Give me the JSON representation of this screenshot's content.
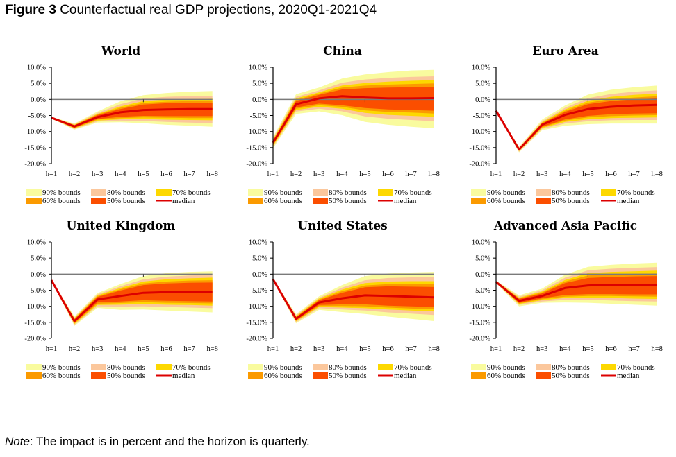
{
  "figure": {
    "label": "Figure 3",
    "title": "Counterfactual real GDP projections, 2020Q1-2021Q4",
    "note_label": "Note",
    "note_text": ": The impact is in percent and the horizon is quarterly."
  },
  "colors": {
    "b90": "#f9fb9e",
    "b80": "#fbc79c",
    "b70": "#fdd800",
    "b60": "#fb9a00",
    "b50": "#fb4e00",
    "median": "#dc0000",
    "zero_line": "#7a7a7a",
    "axis": "#000000"
  },
  "chart_data": [
    {
      "type": "area",
      "title": "World",
      "x": [
        "h=1",
        "h=2",
        "h=3",
        "h=4",
        "h=5",
        "h=6",
        "h=7",
        "h=8"
      ],
      "yticks": [
        "10.0%",
        "5.0%",
        "0.0%",
        "-5.0%",
        "-10.0%",
        "-15.0%",
        "-20.0%"
      ],
      "ylim": [
        -20,
        10
      ],
      "median": [
        -5.7,
        -8.4,
        -5.5,
        -4.0,
        -3.3,
        -3.1,
        -3.0,
        -3.0
      ],
      "bands": {
        "90": {
          "lo": [
            -6.0,
            -9.4,
            -7.2,
            -7.1,
            -7.4,
            -7.9,
            -8.2,
            -8.5
          ],
          "hi": [
            -5.4,
            -7.5,
            -3.8,
            -0.6,
            1.3,
            2.0,
            2.4,
            2.6
          ]
        },
        "80": {
          "lo": [
            -5.9,
            -9.2,
            -6.9,
            -6.6,
            -6.7,
            -7.0,
            -7.2,
            -7.4
          ],
          "hi": [
            -5.5,
            -7.7,
            -4.2,
            -1.5,
            0.3,
            0.8,
            1.0,
            1.1
          ]
        },
        "70": {
          "lo": [
            -5.9,
            -9.0,
            -6.6,
            -6.2,
            -6.1,
            -6.3,
            -6.4,
            -6.5
          ],
          "hi": [
            -5.5,
            -7.9,
            -4.5,
            -2.2,
            -0.5,
            -0.1,
            0.1,
            0.2
          ]
        },
        "60": {
          "lo": [
            -5.8,
            -8.9,
            -6.3,
            -5.8,
            -5.6,
            -5.7,
            -5.8,
            -5.8
          ],
          "hi": [
            -5.6,
            -8.0,
            -4.7,
            -2.6,
            -1.1,
            -0.7,
            -0.5,
            -0.4
          ]
        },
        "50": {
          "lo": [
            -5.8,
            -8.7,
            -6.1,
            -5.4,
            -5.1,
            -5.2,
            -5.2,
            -5.2
          ],
          "hi": [
            -5.6,
            -8.1,
            -4.9,
            -3.0,
            -1.6,
            -1.2,
            -1.1,
            -1.0
          ]
        }
      }
    },
    {
      "type": "area",
      "title": "China",
      "x": [
        "h=1",
        "h=2",
        "h=3",
        "h=4",
        "h=5",
        "h=6",
        "h=7",
        "h=8"
      ],
      "yticks": [
        "10.0%",
        "5.0%",
        "0.0%",
        "-5.0%",
        "-10.0%",
        "-15.0%",
        "-20.0%"
      ],
      "ylim": [
        -20,
        10
      ],
      "median": [
        -13.5,
        -1.5,
        0.3,
        1.0,
        0.6,
        0.3,
        0.3,
        0.4
      ],
      "bands": {
        "90": {
          "lo": [
            -15.2,
            -4.5,
            -3.7,
            -4.9,
            -7.0,
            -7.9,
            -8.5,
            -9.0
          ],
          "hi": [
            -11.8,
            1.6,
            3.7,
            6.5,
            7.8,
            8.5,
            9.0,
            9.2
          ]
        },
        "80": {
          "lo": [
            -14.8,
            -3.8,
            -2.9,
            -3.7,
            -5.3,
            -6.0,
            -6.4,
            -6.8
          ],
          "hi": [
            -12.2,
            0.8,
            2.8,
            5.2,
            6.2,
            6.7,
            7.0,
            7.2
          ]
        },
        "70": {
          "lo": [
            -14.5,
            -3.3,
            -2.3,
            -2.9,
            -4.2,
            -4.8,
            -5.1,
            -5.4
          ],
          "hi": [
            -12.5,
            0.3,
            2.2,
            4.3,
            5.1,
            5.5,
            5.8,
            6.0
          ]
        },
        "60": {
          "lo": [
            -14.2,
            -2.9,
            -1.8,
            -2.3,
            -3.4,
            -3.9,
            -4.1,
            -4.4
          ],
          "hi": [
            -12.8,
            -0.1,
            1.8,
            3.7,
            4.3,
            4.6,
            4.8,
            5.0
          ]
        },
        "50": {
          "lo": [
            -14.0,
            -2.5,
            -1.3,
            -1.8,
            -2.7,
            -3.1,
            -3.3,
            -3.5
          ],
          "hi": [
            -13.0,
            -0.5,
            1.4,
            3.1,
            3.5,
            3.7,
            3.8,
            3.9
          ]
        }
      }
    },
    {
      "type": "area",
      "title": "Euro Area",
      "x": [
        "h=1",
        "h=2",
        "h=3",
        "h=4",
        "h=5",
        "h=6",
        "h=7",
        "h=8"
      ],
      "yticks": [
        "10.0%",
        "5.0%",
        "0.0%",
        "-5.0%",
        "-10.0%",
        "-15.0%",
        "-20.0%"
      ],
      "ylim": [
        -20,
        10
      ],
      "median": [
        -3.5,
        -15.6,
        -7.9,
        -4.8,
        -3.0,
        -2.3,
        -1.9,
        -1.7
      ],
      "bands": {
        "90": {
          "lo": [
            -3.7,
            -16.5,
            -9.6,
            -8.2,
            -7.7,
            -7.5,
            -7.5,
            -7.5
          ],
          "hi": [
            -3.3,
            -14.8,
            -6.3,
            -1.9,
            1.5,
            3.0,
            3.8,
            4.3
          ]
        },
        "80": {
          "lo": [
            -3.7,
            -16.3,
            -9.2,
            -7.5,
            -6.8,
            -6.5,
            -6.4,
            -6.4
          ],
          "hi": [
            -3.3,
            -15.0,
            -6.8,
            -2.6,
            0.4,
            1.7,
            2.4,
            2.8
          ]
        },
        "70": {
          "lo": [
            -3.6,
            -16.1,
            -8.9,
            -7.0,
            -6.2,
            -5.8,
            -5.7,
            -5.6
          ],
          "hi": [
            -3.4,
            -15.2,
            -7.1,
            -3.1,
            -0.4,
            0.8,
            1.4,
            1.8
          ]
        },
        "60": {
          "lo": [
            -3.6,
            -16.0,
            -8.7,
            -6.6,
            -5.6,
            -5.2,
            -5.0,
            -4.9
          ],
          "hi": [
            -3.4,
            -15.3,
            -7.3,
            -3.5,
            -1.0,
            0.1,
            0.6,
            1.0
          ]
        },
        "50": {
          "lo": [
            -3.6,
            -15.9,
            -8.5,
            -6.2,
            -5.1,
            -4.6,
            -4.4,
            -4.3
          ],
          "hi": [
            -3.4,
            -15.4,
            -7.5,
            -3.9,
            -1.5,
            -0.5,
            0.0,
            0.3
          ]
        }
      }
    },
    {
      "type": "area",
      "title": "United Kingdom",
      "x": [
        "h=1",
        "h=2",
        "h=3",
        "h=4",
        "h=5",
        "h=6",
        "h=7",
        "h=8"
      ],
      "yticks": [
        "10.0%",
        "5.0%",
        "0.0%",
        "-5.0%",
        "-10.0%",
        "-15.0%",
        "-20.0%"
      ],
      "ylim": [
        -20,
        10
      ],
      "median": [
        -1.9,
        -14.6,
        -7.9,
        -6.8,
        -5.8,
        -5.6,
        -5.6,
        -5.6
      ],
      "bands": {
        "90": {
          "lo": [
            -2.1,
            -16.1,
            -10.5,
            -11.1,
            -11.0,
            -11.3,
            -11.6,
            -11.9
          ],
          "hi": [
            -1.7,
            -13.2,
            -5.9,
            -3.1,
            -0.6,
            0.3,
            0.7,
            0.9
          ]
        },
        "80": {
          "lo": [
            -2.1,
            -15.8,
            -10.0,
            -10.1,
            -10.0,
            -10.2,
            -10.4,
            -10.6
          ],
          "hi": [
            -1.7,
            -13.5,
            -6.3,
            -3.8,
            -1.6,
            -0.8,
            -0.4,
            -0.2
          ]
        },
        "70": {
          "lo": [
            -2.0,
            -15.5,
            -9.6,
            -9.5,
            -9.3,
            -9.5,
            -9.6,
            -9.8
          ],
          "hi": [
            -1.8,
            -13.7,
            -6.6,
            -4.3,
            -2.3,
            -1.6,
            -1.3,
            -1.1
          ]
        },
        "60": {
          "lo": [
            -2.0,
            -15.3,
            -9.2,
            -9.0,
            -8.7,
            -8.9,
            -9.0,
            -9.1
          ],
          "hi": [
            -1.8,
            -13.9,
            -6.9,
            -4.7,
            -2.9,
            -2.3,
            -2.0,
            -1.9
          ]
        },
        "50": {
          "lo": [
            -2.0,
            -15.1,
            -8.8,
            -8.5,
            -8.1,
            -8.3,
            -8.4,
            -8.5
          ],
          "hi": [
            -1.8,
            -14.1,
            -7.1,
            -5.1,
            -3.4,
            -2.9,
            -2.7,
            -2.6
          ]
        }
      }
    },
    {
      "type": "area",
      "title": "United States",
      "x": [
        "h=1",
        "h=2",
        "h=3",
        "h=4",
        "h=5",
        "h=6",
        "h=7",
        "h=8"
      ],
      "yticks": [
        "10.0%",
        "5.0%",
        "0.0%",
        "-5.0%",
        "-10.0%",
        "-15.0%",
        "-20.0%"
      ],
      "ylim": [
        -20,
        10
      ],
      "median": [
        -1.6,
        -13.9,
        -8.8,
        -7.5,
        -6.6,
        -6.8,
        -7.0,
        -7.2
      ],
      "bands": {
        "90": {
          "lo": [
            -1.8,
            -15.3,
            -11.1,
            -11.8,
            -12.4,
            -13.2,
            -13.9,
            -14.6
          ],
          "hi": [
            -1.4,
            -12.5,
            -6.9,
            -3.4,
            -0.6,
            0.2,
            0.5,
            0.7
          ]
        },
        "80": {
          "lo": [
            -1.8,
            -15.0,
            -10.6,
            -11.0,
            -11.3,
            -11.9,
            -12.3,
            -12.7
          ],
          "hi": [
            -1.4,
            -12.8,
            -7.3,
            -4.2,
            -1.9,
            -1.2,
            -1.0,
            -0.9
          ]
        },
        "70": {
          "lo": [
            -1.7,
            -14.7,
            -10.2,
            -10.4,
            -10.6,
            -11.0,
            -11.3,
            -11.6
          ],
          "hi": [
            -1.5,
            -13.1,
            -7.6,
            -4.8,
            -2.8,
            -2.3,
            -2.2,
            -2.2
          ]
        },
        "60": {
          "lo": [
            -1.7,
            -14.5,
            -9.9,
            -9.9,
            -10.0,
            -10.4,
            -10.7,
            -10.9
          ],
          "hi": [
            -1.5,
            -13.3,
            -7.9,
            -5.3,
            -3.5,
            -3.1,
            -3.1,
            -3.1
          ]
        },
        "50": {
          "lo": [
            -1.7,
            -14.3,
            -9.6,
            -9.4,
            -9.4,
            -9.8,
            -10.0,
            -10.2
          ],
          "hi": [
            -1.5,
            -13.5,
            -8.1,
            -5.8,
            -4.1,
            -3.8,
            -3.9,
            -4.0
          ]
        }
      }
    },
    {
      "type": "area",
      "title": "Advanced Asia Pacific",
      "x": [
        "h=1",
        "h=2",
        "h=3",
        "h=4",
        "h=5",
        "h=6",
        "h=7",
        "h=8"
      ],
      "yticks": [
        "10.0%",
        "5.0%",
        "0.0%",
        "-5.0%",
        "-10.0%",
        "-15.0%",
        "-20.0%"
      ],
      "ylim": [
        -20,
        10
      ],
      "median": [
        -2.4,
        -8.3,
        -6.8,
        -4.3,
        -3.5,
        -3.3,
        -3.3,
        -3.4
      ],
      "bands": {
        "90": {
          "lo": [
            -2.8,
            -10.0,
            -8.9,
            -8.8,
            -8.9,
            -9.2,
            -9.5,
            -9.8
          ],
          "hi": [
            -2.0,
            -6.6,
            -4.5,
            -0.2,
            2.3,
            2.9,
            3.3,
            3.6
          ]
        },
        "80": {
          "lo": [
            -2.7,
            -9.6,
            -8.5,
            -8.0,
            -8.0,
            -8.2,
            -8.4,
            -8.5
          ],
          "hi": [
            -2.1,
            -7.0,
            -5.0,
            -1.1,
            1.2,
            1.7,
            2.0,
            2.2
          ]
        },
        "70": {
          "lo": [
            -2.6,
            -9.3,
            -8.1,
            -7.4,
            -7.3,
            -7.4,
            -7.6,
            -7.7
          ],
          "hi": [
            -2.2,
            -7.3,
            -5.4,
            -1.8,
            0.3,
            0.7,
            0.9,
            1.1
          ]
        },
        "60": {
          "lo": [
            -2.6,
            -9.1,
            -7.8,
            -7.0,
            -6.8,
            -6.8,
            -6.9,
            -7.0
          ],
          "hi": [
            -2.2,
            -7.5,
            -5.7,
            -2.3,
            -0.4,
            -0.1,
            0.1,
            0.2
          ]
        },
        "50": {
          "lo": [
            -2.5,
            -8.9,
            -7.5,
            -6.5,
            -6.2,
            -6.2,
            -6.3,
            -6.3
          ],
          "hi": [
            -2.3,
            -7.7,
            -6.0,
            -2.8,
            -1.2,
            -0.9,
            -0.7,
            -0.6
          ]
        }
      }
    }
  ],
  "legend": [
    {
      "key": "b90",
      "label": "90% bounds",
      "kind": "patch"
    },
    {
      "key": "b80",
      "label": "80% bounds",
      "kind": "patch"
    },
    {
      "key": "b70",
      "label": "70% bounds",
      "kind": "patch"
    },
    {
      "key": "b60",
      "label": "60% bounds",
      "kind": "patch"
    },
    {
      "key": "b50",
      "label": "50% bounds",
      "kind": "patch"
    },
    {
      "key": "median",
      "label": "median",
      "kind": "line"
    }
  ]
}
